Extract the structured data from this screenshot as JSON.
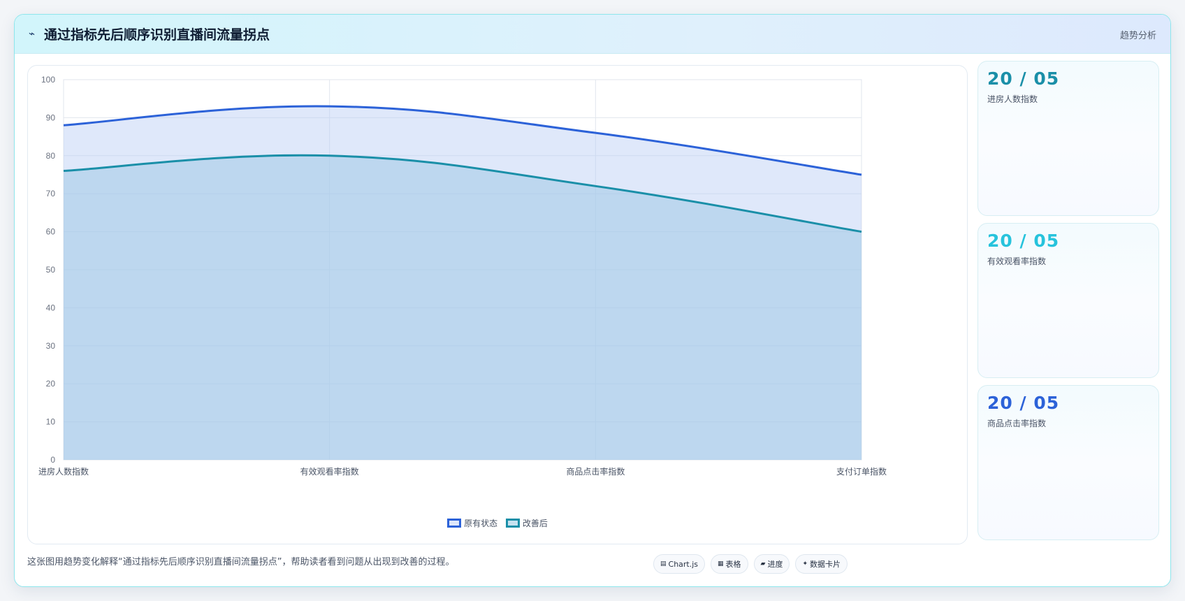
{
  "header": {
    "icon": "⌁",
    "title": "通过指标先后顺序识别直播间流量拐点",
    "tag": "趋势分析"
  },
  "chart_data": {
    "type": "area",
    "categories": [
      "进房人数指数",
      "有效观看率指数",
      "商品点击率指数",
      "支付订单指数"
    ],
    "series": [
      {
        "name": "原有状态",
        "values": [
          88,
          93,
          86,
          75
        ],
        "color": "#2c62d8"
      },
      {
        "name": "改善后",
        "values": [
          76,
          80,
          72,
          60
        ],
        "color": "#1a8fa8"
      }
    ],
    "ylim": [
      0,
      100
    ],
    "yticks": [
      "0",
      "10",
      "20",
      "30",
      "40",
      "50",
      "60",
      "70",
      "80",
      "90",
      "100"
    ],
    "title": "",
    "xlabel": "",
    "ylabel": "",
    "grid": true,
    "legend": "bottom"
  },
  "stats": [
    {
      "value": "20 / 05",
      "label": "进房人数指数",
      "color": "#1a8fa8"
    },
    {
      "value": "20 / 05",
      "label": "有效观看率指数",
      "color": "#27c3dc"
    },
    {
      "value": "20 / 05",
      "label": "商品点击率指数",
      "color": "#2c62d8"
    }
  ],
  "caption": "这张图用趋势变化解释“通过指标先后顺序识别直播间流量拐点”，帮助读者看到问题从出现到改善的过程。",
  "chips": [
    {
      "icon": "▤",
      "label": "Chart.js"
    },
    {
      "icon": "▦",
      "label": "表格"
    },
    {
      "icon": "▰",
      "label": "进度"
    },
    {
      "icon": "✦",
      "label": "数据卡片"
    }
  ]
}
